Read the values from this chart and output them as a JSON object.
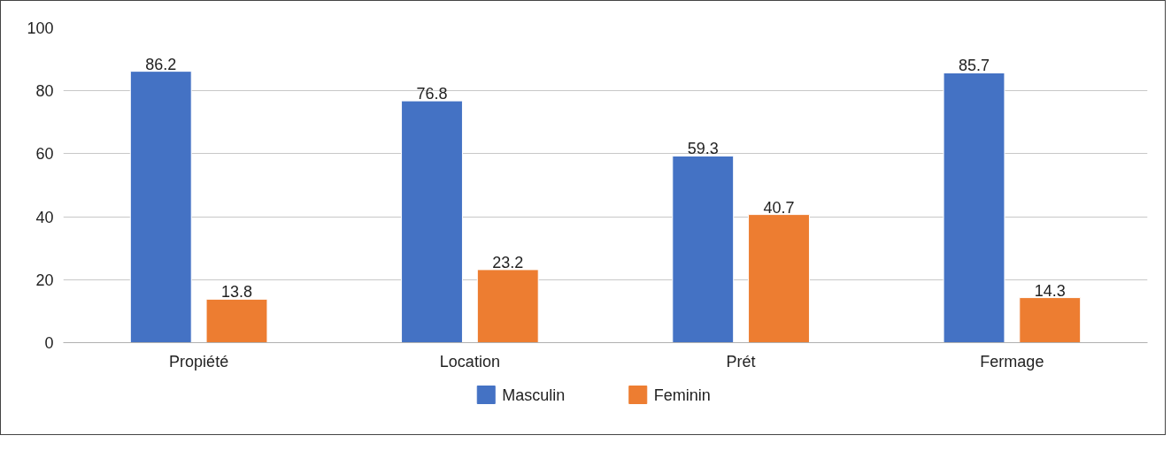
{
  "chart_data": {
    "type": "bar",
    "categories": [
      "Propiété",
      "Location",
      "Prét",
      "Fermage"
    ],
    "series": [
      {
        "name": "Masculin",
        "color": "#4472c4",
        "values": [
          86.2,
          76.8,
          59.3,
          85.7
        ]
      },
      {
        "name": "Feminin",
        "color": "#ed7d31",
        "values": [
          13.8,
          23.2,
          40.7,
          14.3
        ]
      }
    ],
    "ylim": [
      0,
      100
    ],
    "yticks": [
      0,
      20,
      40,
      60,
      80,
      100
    ],
    "grid": "y",
    "legend": "bottom",
    "data_labels": true
  }
}
